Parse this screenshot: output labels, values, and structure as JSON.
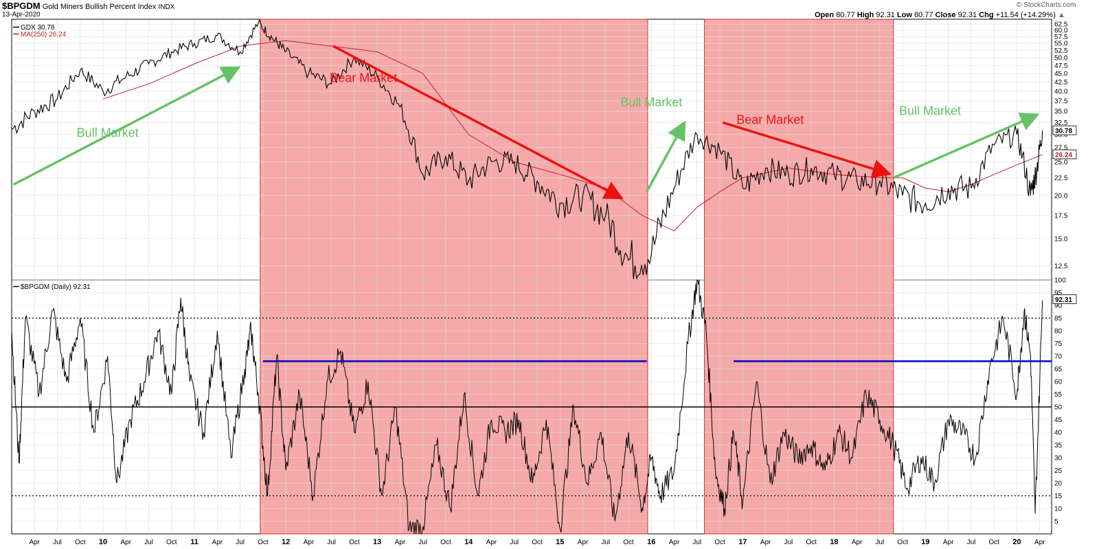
{
  "header": {
    "symbol": "$BPGDM",
    "name": "Gold Miners Bullish Percent Index",
    "exchange": "INDX",
    "date": "13-Apr-2020",
    "ohlc": {
      "open_label": "Open",
      "open": "80.77",
      "high_label": "High",
      "high": "92.31",
      "low_label": "Low",
      "low": "80.77",
      "close_label": "Close",
      "close": "92.31",
      "chg_label": "Chg",
      "chg": "+11.54 (+14.29%)"
    },
    "copyright": "© StockCharts.com",
    "arrow_glyph": "▲"
  },
  "colors": {
    "price": "#000000",
    "ma": "#c0202a",
    "bear_shade": "#f4a0a0",
    "bull_annot": "#66c266",
    "bear_annot": "#ee1111",
    "level_blue": "#0000cc"
  },
  "chart_data": [
    {
      "type": "line",
      "panel": "top",
      "legend": [
        "GDX 30.78",
        "MA(250) 26.24"
      ],
      "y_ticks": [
        "62.5",
        "60.0",
        "57.5",
        "55.0",
        "52.5",
        "50.0",
        "47.5",
        "45.0",
        "42.5",
        "40.0",
        "37.5",
        "35.0",
        "32.5",
        "30.0",
        "27.5",
        "25.0",
        "22.5",
        "20.0",
        "17.5",
        "15.0",
        "12.5"
      ],
      "y_scale": "log",
      "ylim": [
        11.5,
        64
      ],
      "last_labels": [
        "30.78",
        "26.24"
      ],
      "series": [
        {
          "name": "GDX",
          "x": [
            2009.0,
            2009.25,
            2009.5,
            2009.75,
            2010.0,
            2010.25,
            2010.5,
            2010.75,
            2011.0,
            2011.25,
            2011.5,
            2011.7,
            2011.85,
            2012.0,
            2012.25,
            2012.5,
            2012.75,
            2013.0,
            2013.25,
            2013.5,
            2013.75,
            2014.0,
            2014.25,
            2014.5,
            2014.75,
            2015.0,
            2015.25,
            2015.5,
            2015.75,
            2016.0,
            2016.25,
            2016.5,
            2016.75,
            2017.0,
            2017.25,
            2017.5,
            2017.75,
            2018.0,
            2018.25,
            2018.5,
            2018.75,
            2019.0,
            2019.25,
            2019.5,
            2019.75,
            2020.0,
            2020.15,
            2020.22,
            2020.28
          ],
          "values": [
            31,
            35,
            38,
            46,
            40,
            44,
            48,
            52,
            55,
            58,
            52,
            63,
            57,
            52,
            45,
            42,
            50,
            44,
            36,
            23,
            26,
            22,
            25,
            25,
            22,
            19,
            20,
            17.5,
            13,
            13.5,
            21,
            30,
            27,
            21,
            24,
            23,
            24,
            23,
            22,
            22,
            20,
            19,
            21,
            21,
            28,
            30,
            20,
            24,
            30.8
          ]
        },
        {
          "name": "MA(250)",
          "x": [
            2010.0,
            2010.5,
            2011.0,
            2011.5,
            2012.0,
            2012.5,
            2013.0,
            2013.5,
            2014.0,
            2014.5,
            2015.0,
            2015.5,
            2015.9,
            2016.25,
            2016.5,
            2016.75,
            2017.0,
            2017.5,
            2018.0,
            2018.5,
            2018.75,
            2019.0,
            2019.25,
            2019.5,
            2019.75,
            2020.0,
            2020.28
          ],
          "values": [
            38,
            42,
            48,
            54,
            56,
            54,
            52,
            45,
            30,
            25,
            23,
            21,
            17.5,
            15.8,
            18.5,
            20.5,
            22.5,
            24,
            23,
            22.5,
            22.5,
            21,
            20.5,
            21.5,
            23,
            24.5,
            26.24
          ]
        }
      ],
      "annotations": [
        "Bull Market",
        "Bear Market",
        "Bull Market",
        "Bear Market",
        "Bull Market"
      ]
    },
    {
      "type": "line",
      "panel": "bottom",
      "legend": [
        "$BPGDM (Daily) 92.31"
      ],
      "y_ticks": [
        "100",
        "95",
        "90",
        "85",
        "80",
        "75",
        "70",
        "65",
        "60",
        "55",
        "50",
        "45",
        "40",
        "35",
        "30",
        "25",
        "20",
        "15",
        "10",
        "5"
      ],
      "ylim": [
        0,
        100
      ],
      "last_label": "92.31",
      "reference_lines": [
        {
          "value": 85,
          "style": "dotted"
        },
        {
          "value": 50,
          "style": "solid"
        },
        {
          "value": 15,
          "style": "dotted"
        }
      ],
      "level_lines": [
        {
          "from": 2011.75,
          "to": 2015.95,
          "value": 68
        },
        {
          "from": 2016.9,
          "to": 2020.38,
          "value": 68
        }
      ],
      "series": [
        {
          "name": "$BPGDM",
          "x": [
            2009.0,
            2009.08,
            2009.15,
            2009.3,
            2009.45,
            2009.6,
            2009.75,
            2009.9,
            2010.05,
            2010.15,
            2010.3,
            2010.45,
            2010.6,
            2010.75,
            2010.85,
            2010.95,
            2011.1,
            2011.25,
            2011.4,
            2011.55,
            2011.62,
            2011.7,
            2011.8,
            2011.9,
            2012.0,
            2012.15,
            2012.3,
            2012.45,
            2012.6,
            2012.75,
            2012.9,
            2013.05,
            2013.2,
            2013.35,
            2013.5,
            2013.65,
            2013.8,
            2013.95,
            2014.1,
            2014.25,
            2014.4,
            2014.55,
            2014.7,
            2014.85,
            2015.0,
            2015.15,
            2015.3,
            2015.45,
            2015.6,
            2015.75,
            2015.9,
            2016.0,
            2016.1,
            2016.25,
            2016.4,
            2016.5,
            2016.6,
            2016.7,
            2016.8,
            2016.9,
            2017.0,
            2017.15,
            2017.3,
            2017.45,
            2017.6,
            2017.75,
            2017.9,
            2018.05,
            2018.2,
            2018.35,
            2018.5,
            2018.65,
            2018.8,
            2018.95,
            2019.1,
            2019.25,
            2019.4,
            2019.55,
            2019.7,
            2019.85,
            2020.0,
            2020.08,
            2020.15,
            2020.2,
            2020.28
          ],
          "values": [
            80,
            28,
            85,
            55,
            88,
            60,
            85,
            40,
            70,
            20,
            45,
            60,
            80,
            55,
            93,
            60,
            40,
            80,
            30,
            65,
            80,
            55,
            15,
            70,
            25,
            55,
            15,
            60,
            72,
            40,
            60,
            15,
            50,
            2,
            3,
            35,
            10,
            55,
            15,
            45,
            40,
            45,
            20,
            45,
            2,
            50,
            20,
            40,
            5,
            40,
            10,
            30,
            15,
            25,
            75,
            100,
            80,
            25,
            10,
            40,
            12,
            60,
            20,
            40,
            30,
            35,
            25,
            40,
            30,
            55,
            45,
            35,
            18,
            30,
            20,
            45,
            40,
            30,
            65,
            85,
            55,
            88,
            70,
            8,
            92
          ]
        }
      ]
    }
  ],
  "time_axis": {
    "ticks": [
      "Apr",
      "Jul",
      "Oct",
      "10",
      "Apr",
      "Jul",
      "Oct",
      "11",
      "Apr",
      "Jul",
      "Oct",
      "12",
      "Apr",
      "Jul",
      "Oct",
      "13",
      "Apr",
      "Jul",
      "Oct",
      "14",
      "Apr",
      "Jul",
      "Oct",
      "15",
      "Apr",
      "Jul",
      "Oct",
      "16",
      "Apr",
      "Jul",
      "Oct",
      "17",
      "Apr",
      "Jul",
      "Oct",
      "18",
      "Apr",
      "Jul",
      "Oct",
      "19",
      "Apr",
      "Jul",
      "Oct",
      "20",
      "Apr"
    ],
    "start": 2009.0,
    "end": 2020.38
  },
  "bear_periods": [
    {
      "from": 2011.72,
      "to": 2015.96
    },
    {
      "from": 2016.58,
      "to": 2018.65
    }
  ]
}
